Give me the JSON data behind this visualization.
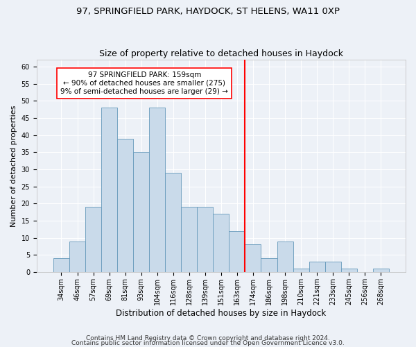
{
  "title1": "97, SPRINGFIELD PARK, HAYDOCK, ST HELENS, WA11 0XP",
  "title2": "Size of property relative to detached houses in Haydock",
  "xlabel": "Distribution of detached houses by size in Haydock",
  "ylabel": "Number of detached properties",
  "bar_labels": [
    "34sqm",
    "46sqm",
    "57sqm",
    "69sqm",
    "81sqm",
    "93sqm",
    "104sqm",
    "116sqm",
    "128sqm",
    "139sqm",
    "151sqm",
    "163sqm",
    "174sqm",
    "186sqm",
    "198sqm",
    "210sqm",
    "221sqm",
    "233sqm",
    "245sqm",
    "256sqm",
    "268sqm"
  ],
  "bar_values": [
    4,
    9,
    19,
    48,
    39,
    35,
    48,
    29,
    19,
    19,
    17,
    12,
    8,
    4,
    9,
    1,
    3,
    3,
    1,
    0,
    1
  ],
  "bar_color": "#c9daea",
  "bar_edgecolor": "#6699bb",
  "vline_index": 11.5,
  "annotation_line1": "97 SPRINGFIELD PARK: 159sqm",
  "annotation_line2": "← 90% of detached houses are smaller (275)",
  "annotation_line3": "9% of semi-detached houses are larger (29) →",
  "ylim": [
    0,
    62
  ],
  "yticks": [
    0,
    5,
    10,
    15,
    20,
    25,
    30,
    35,
    40,
    45,
    50,
    55,
    60
  ],
  "footer1": "Contains HM Land Registry data © Crown copyright and database right 2024.",
  "footer2": "Contains public sector information licensed under the Open Government Licence v3.0.",
  "bg_color": "#edf1f7",
  "grid_color": "#ffffff",
  "title1_fontsize": 9.5,
  "title2_fontsize": 9,
  "xlabel_fontsize": 8.5,
  "ylabel_fontsize": 8,
  "tick_fontsize": 7,
  "annotation_fontsize": 7.5,
  "footer_fontsize": 6.5
}
